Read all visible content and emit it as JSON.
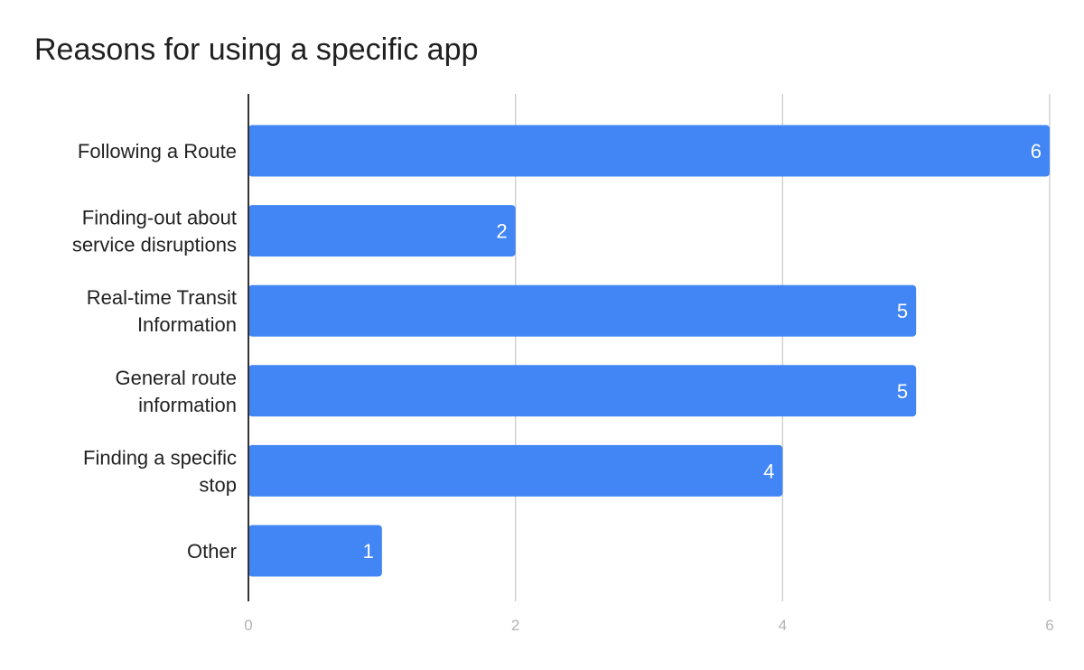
{
  "chart_data": {
    "type": "bar",
    "orientation": "horizontal",
    "title": "Reasons for using a specific app",
    "xlabel": "",
    "ylabel": "",
    "categories": [
      "Following a Route",
      "Finding-out about service disruptions",
      "Real-time Transit Information",
      "General route information",
      "Finding a specific stop",
      "Other"
    ],
    "category_lines": [
      [
        "Following a Route"
      ],
      [
        "Finding-out about",
        "service disruptions"
      ],
      [
        "Real-time Transit",
        "Information"
      ],
      [
        "General route",
        "information"
      ],
      [
        "Finding a specific",
        "stop"
      ],
      [
        "Other"
      ]
    ],
    "values": [
      6,
      2,
      5,
      5,
      4,
      1
    ],
    "data_labels": [
      "6",
      "2",
      "5",
      "5",
      "4",
      "1"
    ],
    "xlim": [
      0,
      6
    ],
    "x_ticks": [
      0,
      2,
      4,
      6
    ],
    "x_tick_labels": [
      "0",
      "2",
      "4",
      "6"
    ],
    "grid": true,
    "legend": "none",
    "bar_color": "#4285f4",
    "grid_color": "#cccccc",
    "axis_color": "#333333"
  }
}
